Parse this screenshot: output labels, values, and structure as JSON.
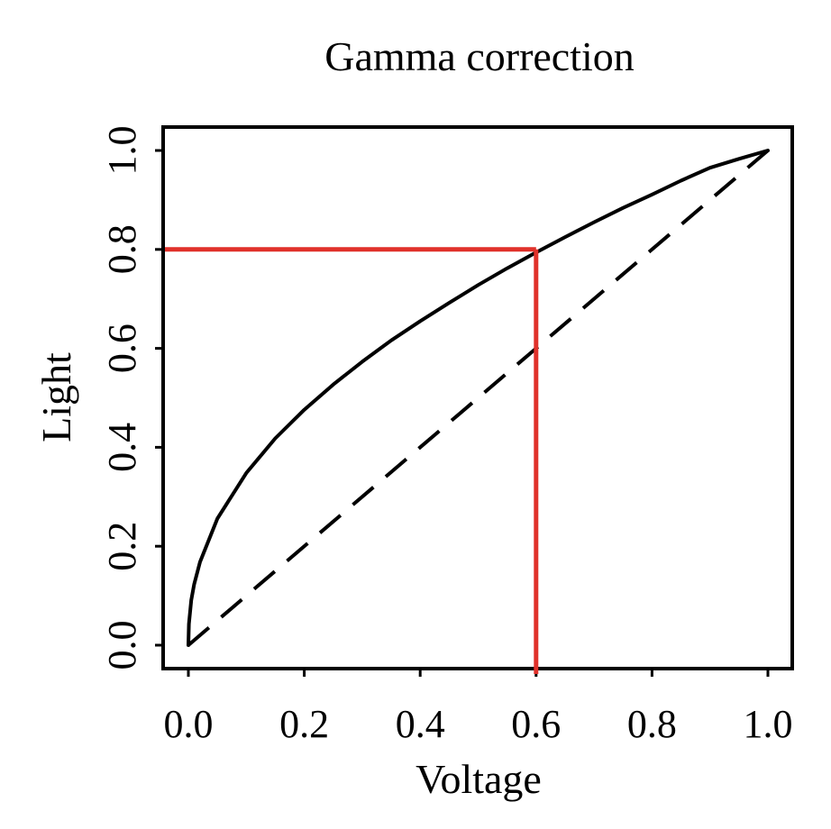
{
  "chart_data": {
    "type": "line",
    "title": "Gamma correction",
    "xlabel": "Voltage",
    "ylabel": "Light",
    "xlim": [
      -0.04,
      1.04
    ],
    "ylim": [
      -0.04,
      1.04
    ],
    "xticks": [
      "0.0",
      "0.2",
      "0.4",
      "0.6",
      "0.8",
      "1.0"
    ],
    "yticks": [
      "0.0",
      "0.2",
      "0.4",
      "0.6",
      "0.8",
      "1.0"
    ],
    "grid": false,
    "legend": "none",
    "series": [
      {
        "style": "solid",
        "color": "#000000",
        "x": [
          0.0,
          0.001,
          0.005,
          0.01,
          0.02,
          0.05,
          0.1,
          0.15,
          0.2,
          0.25,
          0.3,
          0.35,
          0.4,
          0.45,
          0.5,
          0.55,
          0.6,
          0.65,
          0.7,
          0.75,
          0.8,
          0.85,
          0.9,
          0.95,
          1.0
        ],
        "y": [
          0.0,
          0.043,
          0.091,
          0.123,
          0.168,
          0.256,
          0.348,
          0.418,
          0.476,
          0.527,
          0.573,
          0.616,
          0.655,
          0.692,
          0.728,
          0.762,
          0.794,
          0.825,
          0.855,
          0.884,
          0.911,
          0.939,
          0.965,
          0.983,
          1.0
        ]
      },
      {
        "style": "dashed",
        "color": "#000000",
        "x": [
          0.0,
          1.0
        ],
        "y": [
          0.0,
          1.0
        ]
      }
    ],
    "annotations": [
      {
        "type": "guide-line",
        "color": "#e0312a",
        "x": 0.6,
        "y": 0.8
      }
    ]
  }
}
